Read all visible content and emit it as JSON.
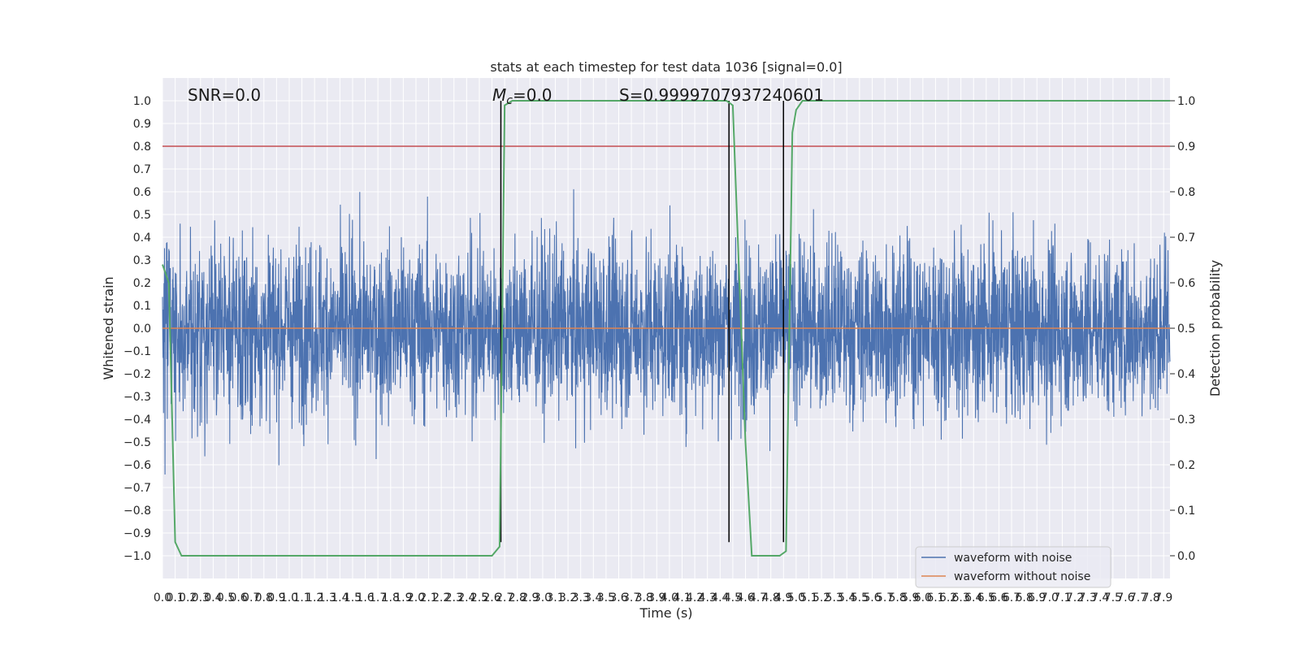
{
  "chart_data": {
    "type": "line",
    "title": "stats at each timestep for test data 1036 [signal=0.0]",
    "xlabel": "Time (s)",
    "ylabel": "Whitened strain",
    "y2label": "Detection probability",
    "xlim": [
      0.0,
      7.95
    ],
    "ylim": [
      -1.1,
      1.1
    ],
    "y2lim": [
      -0.05,
      1.05
    ],
    "x_ticks": [
      0.0,
      0.1,
      0.2,
      0.3,
      0.4,
      0.5,
      0.6,
      0.7,
      0.8,
      0.9,
      1.0,
      1.1,
      1.2,
      1.3,
      1.4,
      1.5,
      1.6,
      1.7,
      1.8,
      1.9,
      2.0,
      2.1,
      2.2,
      2.3,
      2.4,
      2.5,
      2.6,
      2.7,
      2.8,
      2.9,
      3.0,
      3.1,
      3.2,
      3.3,
      3.4,
      3.5,
      3.6,
      3.7,
      3.8,
      3.9,
      4.0,
      4.1,
      4.2,
      4.3,
      4.4,
      4.5,
      4.6,
      4.7,
      4.8,
      4.9,
      5.0,
      5.1,
      5.2,
      5.3,
      5.4,
      5.5,
      5.6,
      5.7,
      5.8,
      5.9,
      6.0,
      6.1,
      6.2,
      6.3,
      6.4,
      6.5,
      6.6,
      6.7,
      6.8,
      6.9,
      7.0,
      7.1,
      7.2,
      7.3,
      7.4,
      7.5,
      7.6,
      7.7,
      7.8,
      7.9
    ],
    "y_ticks": [
      -1.0,
      -0.9,
      -0.8,
      -0.7,
      -0.6,
      -0.5,
      -0.4,
      -0.3,
      -0.2,
      -0.1,
      0.0,
      0.1,
      0.2,
      0.3,
      0.4,
      0.5,
      0.6,
      0.7,
      0.8,
      0.9,
      1.0
    ],
    "y2_ticks": [
      0.0,
      0.1,
      0.2,
      0.3,
      0.4,
      0.5,
      0.6,
      0.7,
      0.8,
      0.9,
      1.0
    ],
    "annotations": {
      "snr": "SNR=0.0",
      "mc_base": "M",
      "mc_sub": "c",
      "mc_rest": "=0.0",
      "s": "S=0.9999707937240601"
    },
    "series": [
      {
        "name": "waveform with noise",
        "color": "#4c72b0",
        "style": "dense-noise",
        "amplitude_rms": 0.2,
        "peak_max": 0.88,
        "peak_min": -0.94
      },
      {
        "name": "waveform without noise",
        "color": "#dd8452",
        "x": [
          0.0,
          7.95
        ],
        "y": [
          0.0,
          0.0
        ]
      }
    ],
    "detection_probability": {
      "color": "#55a868",
      "x": [
        0.0,
        0.05,
        0.1,
        0.15,
        2.6,
        2.66,
        2.7,
        2.76,
        4.45,
        4.5,
        4.6,
        4.65,
        4.87,
        4.92,
        4.97,
        5.0,
        5.05,
        7.95
      ],
      "y": [
        0.64,
        0.6,
        0.03,
        0.0,
        0.0,
        0.02,
        0.99,
        1.0,
        1.0,
        0.99,
        0.25,
        0.0,
        0.0,
        0.01,
        0.93,
        0.98,
        1.0,
        1.0
      ]
    },
    "threshold_line": {
      "color": "#c44e52",
      "y2": 0.9
    },
    "vertical_markers": {
      "color": "#000000",
      "x": [
        2.67,
        4.47,
        4.9
      ],
      "y_range": [
        -0.94,
        1.0
      ]
    },
    "grid": true,
    "legend_position": "lower-right"
  }
}
